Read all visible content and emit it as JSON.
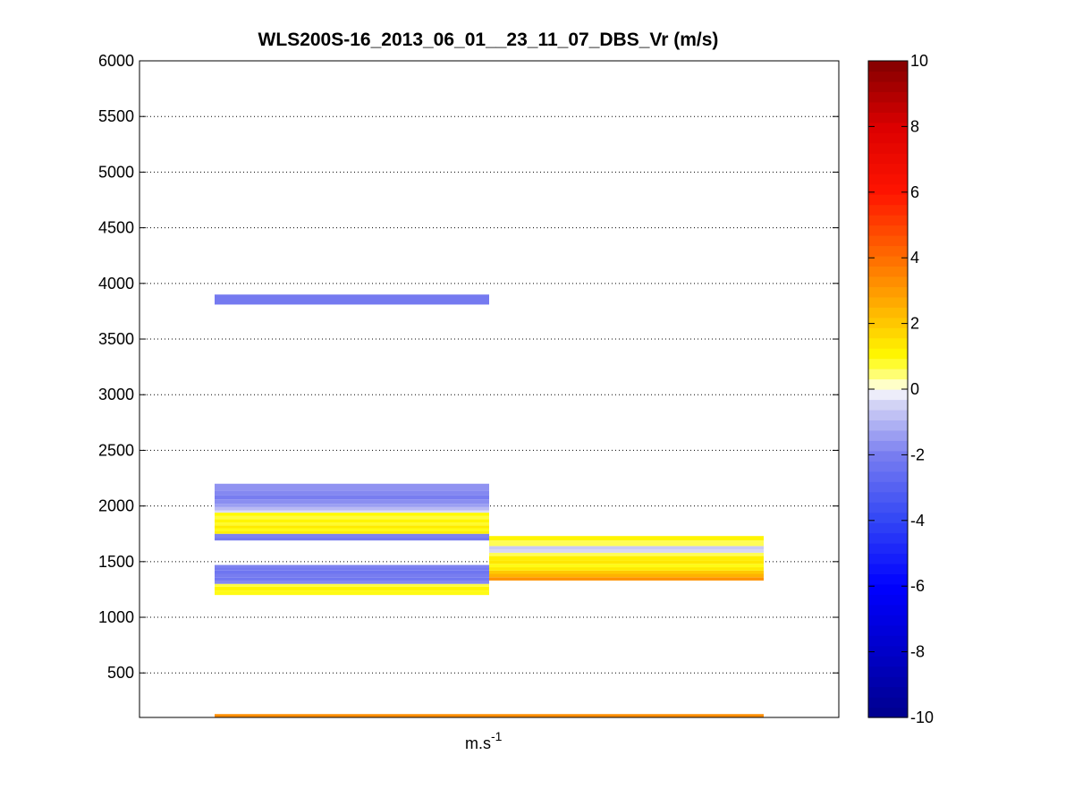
{
  "chart_data": {
    "type": "heatmap",
    "title": "WLS200S-16_2013_06_01__23_11_07_DBS_Vr (m/s)",
    "xlabel_base": "m.s",
    "xlabel_sup": "-1",
    "ylabel": "",
    "ylim": [
      100,
      6000
    ],
    "yticks": [
      500,
      1000,
      1500,
      2000,
      2500,
      3000,
      3500,
      4000,
      4500,
      5000,
      5500,
      6000
    ],
    "grid": true,
    "colorbar": {
      "range": [
        -10,
        10
      ],
      "ticks": [
        -10,
        -8,
        -6,
        -4,
        -2,
        0,
        2,
        4,
        6,
        8,
        10
      ],
      "levels": 64
    },
    "columns": [
      {
        "segments": [
          {
            "y0": 100,
            "y1": 130,
            "value": 3.3
          },
          {
            "y0": 1200,
            "y1": 1240,
            "value": 0.9
          },
          {
            "y0": 1240,
            "y1": 1275,
            "value": 1.1
          },
          {
            "y0": 1275,
            "y1": 1300,
            "value": 0.7
          },
          {
            "y0": 1300,
            "y1": 1330,
            "value": -1.8
          },
          {
            "y0": 1330,
            "y1": 1360,
            "value": -2.2
          },
          {
            "y0": 1360,
            "y1": 1390,
            "value": -2.0
          },
          {
            "y0": 1390,
            "y1": 1420,
            "value": -2.3
          },
          {
            "y0": 1420,
            "y1": 1450,
            "value": -2.1
          },
          {
            "y0": 1450,
            "y1": 1470,
            "value": -1.9
          },
          {
            "y0": 1690,
            "y1": 1720,
            "value": -2.1
          },
          {
            "y0": 1720,
            "y1": 1750,
            "value": -1.9
          },
          {
            "y0": 1750,
            "y1": 1775,
            "value": 1.2
          },
          {
            "y0": 1775,
            "y1": 1800,
            "value": 0.9
          },
          {
            "y0": 1800,
            "y1": 1825,
            "value": 1.3
          },
          {
            "y0": 1825,
            "y1": 1850,
            "value": 0.8
          },
          {
            "y0": 1850,
            "y1": 1880,
            "value": 1.1
          },
          {
            "y0": 1880,
            "y1": 1910,
            "value": 0.7
          },
          {
            "y0": 1910,
            "y1": 1940,
            "value": 1.0
          },
          {
            "y0": 1940,
            "y1": 1960,
            "value": -0.3
          },
          {
            "y0": 1960,
            "y1": 1990,
            "value": -0.9
          },
          {
            "y0": 1990,
            "y1": 2020,
            "value": -1.4
          },
          {
            "y0": 2020,
            "y1": 2060,
            "value": -1.7
          },
          {
            "y0": 2060,
            "y1": 2100,
            "value": -2.0
          },
          {
            "y0": 2100,
            "y1": 2140,
            "value": -1.8
          },
          {
            "y0": 2140,
            "y1": 2200,
            "value": -1.6
          },
          {
            "y0": 3810,
            "y1": 3900,
            "value": -2.1
          }
        ]
      },
      {
        "segments": [
          {
            "y0": 100,
            "y1": 130,
            "value": 3.3
          },
          {
            "y0": 1330,
            "y1": 1360,
            "value": 3.2
          },
          {
            "y0": 1360,
            "y1": 1390,
            "value": 2.5
          },
          {
            "y0": 1390,
            "y1": 1420,
            "value": 2.0
          },
          {
            "y0": 1420,
            "y1": 1450,
            "value": 1.3
          },
          {
            "y0": 1450,
            "y1": 1480,
            "value": 0.9
          },
          {
            "y0": 1480,
            "y1": 1510,
            "value": 1.4
          },
          {
            "y0": 1510,
            "y1": 1550,
            "value": 1.2
          },
          {
            "y0": 1550,
            "y1": 1580,
            "value": 0.6
          },
          {
            "y0": 1580,
            "y1": 1610,
            "value": -0.4
          },
          {
            "y0": 1610,
            "y1": 1640,
            "value": -0.6
          },
          {
            "y0": 1640,
            "y1": 1690,
            "value": 0.6
          },
          {
            "y0": 1690,
            "y1": 1730,
            "value": 1.1
          }
        ]
      }
    ]
  }
}
